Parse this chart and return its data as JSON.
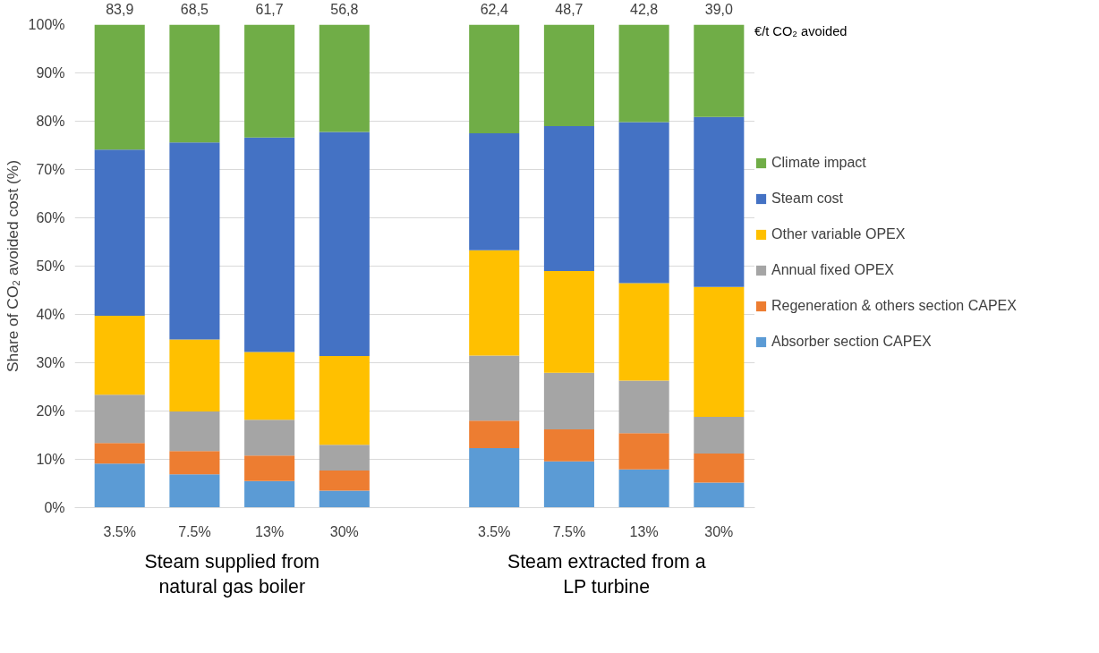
{
  "chart_data": {
    "type": "bar",
    "stacked": true,
    "ylabel": "Share of CO₂ avoided cost (%)",
    "categories": [
      "3.5%",
      "7.5%",
      "13%",
      "30%",
      null,
      "3.5%",
      "7.5%",
      "13%",
      "30%"
    ],
    "series": [
      {
        "name": "Absorber section CAPEX",
        "color": "#5b9bd5",
        "values": [
          9.1,
          6.9,
          5.5,
          3.5,
          null,
          12.3,
          9.6,
          7.9,
          5.2
        ]
      },
      {
        "name": "Regeneration & others section CAPEX",
        "color": "#ed7d31",
        "values": [
          4.3,
          4.8,
          5.3,
          4.2,
          null,
          5.7,
          6.6,
          7.5,
          6.0
        ]
      },
      {
        "name": "Annual fixed OPEX",
        "color": "#a5a5a5",
        "values": [
          10.0,
          8.2,
          7.4,
          5.3,
          null,
          13.5,
          11.7,
          10.9,
          7.6
        ]
      },
      {
        "name": "Other variable OPEX",
        "color": "#ffc000",
        "values": [
          16.3,
          14.9,
          14.0,
          18.4,
          null,
          21.8,
          21.1,
          20.2,
          26.9
        ]
      },
      {
        "name": "Steam cost",
        "color": "#4472c4",
        "values": [
          34.4,
          40.8,
          44.4,
          46.4,
          null,
          24.2,
          30.0,
          33.3,
          35.2
        ]
      },
      {
        "name": "Climate impact",
        "color": "#70ad47",
        "values": [
          25.9,
          24.4,
          23.4,
          22.2,
          null,
          22.5,
          21.0,
          20.2,
          19.1
        ]
      }
    ],
    "annotations": [
      "Steam supplied from natural gas boiler",
      "Steam extracted from a LP turbine",
      "€/t CO₂ avoided",
      "83,9",
      "68,5",
      "61,7",
      "56,8",
      "62,4",
      "48,7",
      "42,8",
      "39,0"
    ],
    "ylim": [
      0,
      100
    ],
    "yticks": [
      {
        "value": 0,
        "label": "0%"
      },
      {
        "value": 10,
        "label": "10%"
      },
      {
        "value": 20,
        "label": "20%"
      },
      {
        "value": 30,
        "label": "30%"
      },
      {
        "value": 40,
        "label": "40%"
      },
      {
        "value": 50,
        "label": "50%"
      },
      {
        "value": 60,
        "label": "60%"
      },
      {
        "value": 70,
        "label": "70%"
      },
      {
        "value": 80,
        "label": "80%"
      },
      {
        "value": 90,
        "label": "90%"
      },
      {
        "value": 100,
        "label": "100%"
      }
    ],
    "grid": "y",
    "legend": "right"
  }
}
